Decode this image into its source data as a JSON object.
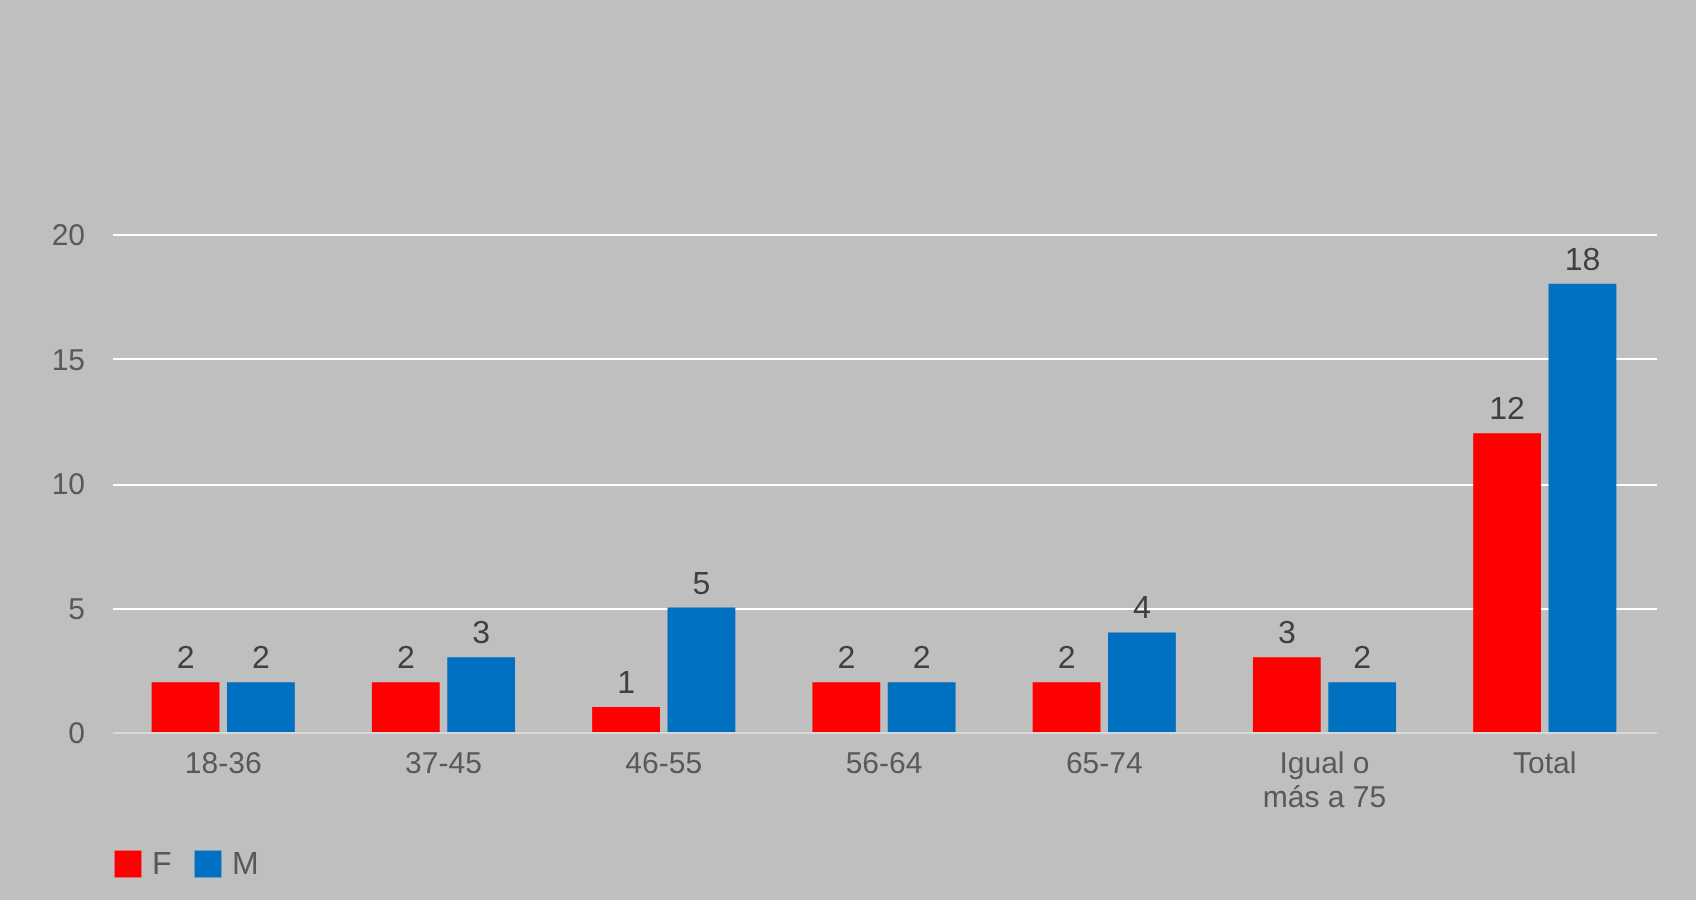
{
  "chart_data": {
    "type": "bar",
    "categories": [
      "18-36",
      "37-45",
      "46-55",
      "56-64",
      "65-74",
      "Igual o más a 75",
      "Total"
    ],
    "series": [
      {
        "name": "F",
        "color": "#ff0000",
        "values": [
          2,
          2,
          1,
          2,
          2,
          3,
          12
        ]
      },
      {
        "name": "M",
        "color": "#0070c0",
        "values": [
          2,
          3,
          5,
          2,
          4,
          2,
          18
        ]
      }
    ],
    "ylim": [
      0,
      20
    ],
    "yticks": [
      0,
      5,
      10,
      15,
      20
    ],
    "grid": "y",
    "legend": "bottom",
    "data_labels": true
  }
}
